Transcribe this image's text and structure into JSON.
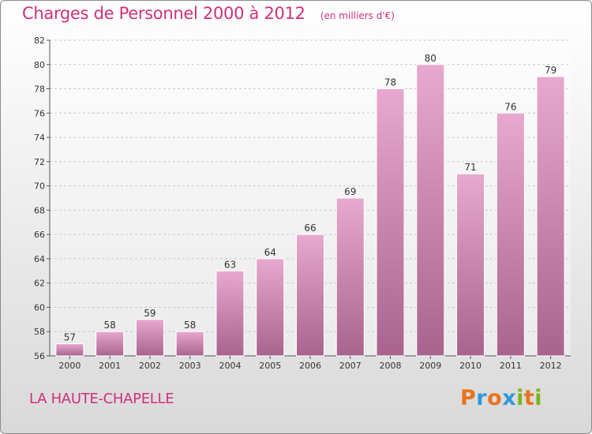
{
  "chart_data": {
    "type": "bar",
    "title": "Charges de Personnel 2000 à 2012",
    "subtitle": "(en milliers d'€)",
    "categories": [
      "2000",
      "2001",
      "2002",
      "2003",
      "2004",
      "2005",
      "2006",
      "2007",
      "2008",
      "2009",
      "2010",
      "2011",
      "2012"
    ],
    "values": [
      57,
      58,
      59,
      58,
      63,
      64,
      66,
      69,
      78,
      80,
      71,
      76,
      79
    ],
    "ylim": [
      56,
      82
    ],
    "yticks": [
      56,
      58,
      60,
      62,
      64,
      66,
      68,
      70,
      72,
      74,
      76,
      78,
      80,
      82
    ],
    "grid": true,
    "bar_color": "#c06a9a",
    "xlabel": "",
    "ylabel": ""
  },
  "location": "LA HAUTE-CHAPELLE",
  "logo": {
    "letters": [
      "P",
      "r",
      "o",
      "x",
      "i",
      "t",
      "i"
    ],
    "colors": [
      "#e8731d",
      "#2d9ad8",
      "#e8731d",
      "#2d9ad8",
      "#7ab51d",
      "#e8731d",
      "#7ab51d"
    ]
  },
  "colors": {
    "accent": "#d0307a",
    "bar_light": "#e8a8cf",
    "bar_dark": "#a8648e"
  }
}
